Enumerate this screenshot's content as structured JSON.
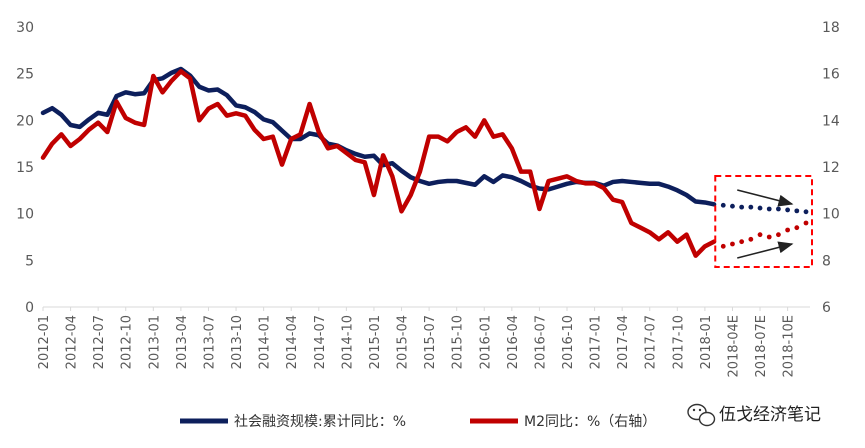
{
  "chart_data": {
    "type": "line",
    "title": "",
    "xlabel": "",
    "ylabel": "",
    "y_left_ticks": [
      "0",
      "5",
      "10",
      "15",
      "20",
      "25",
      "30"
    ],
    "y_right_ticks": [
      "6",
      "8",
      "10",
      "12",
      "14",
      "16",
      "18"
    ],
    "ylim_left": [
      0,
      30
    ],
    "ylim_right": [
      6,
      18
    ],
    "x_tick_labels": [
      "2012-01",
      "2012-04",
      "2012-07",
      "2012-10",
      "2013-01",
      "2013-04",
      "2013-07",
      "2013-10",
      "2014-01",
      "2014-04",
      "2014-07",
      "2014-10",
      "2015-01",
      "2015-04",
      "2015-07",
      "2015-10",
      "2016-01",
      "2016-04",
      "2016-07",
      "2016-10",
      "2017-01",
      "2017-04",
      "2017-07",
      "2017-10",
      "2018-01",
      "2018-04E",
      "2018-07E",
      "2018-10E"
    ],
    "x": [
      "2012-01",
      "2012-02",
      "2012-03",
      "2012-04",
      "2012-05",
      "2012-06",
      "2012-07",
      "2012-08",
      "2012-09",
      "2012-10",
      "2012-11",
      "2012-12",
      "2013-01",
      "2013-02",
      "2013-03",
      "2013-04",
      "2013-05",
      "2013-06",
      "2013-07",
      "2013-08",
      "2013-09",
      "2013-10",
      "2013-11",
      "2013-12",
      "2014-01",
      "2014-02",
      "2014-03",
      "2014-04",
      "2014-05",
      "2014-06",
      "2014-07",
      "2014-08",
      "2014-09",
      "2014-10",
      "2014-11",
      "2014-12",
      "2015-01",
      "2015-02",
      "2015-03",
      "2015-04",
      "2015-05",
      "2015-06",
      "2015-07",
      "2015-08",
      "2015-09",
      "2015-10",
      "2015-11",
      "2015-12",
      "2016-01",
      "2016-02",
      "2016-03",
      "2016-04",
      "2016-05",
      "2016-06",
      "2016-07",
      "2016-08",
      "2016-09",
      "2016-10",
      "2016-11",
      "2016-12",
      "2017-01",
      "2017-02",
      "2017-03",
      "2017-04",
      "2017-05",
      "2017-06",
      "2017-07",
      "2017-08",
      "2017-09",
      "2017-10",
      "2017-11",
      "2017-12",
      "2018-01",
      "2018-02",
      "2018-03",
      "2018-04E",
      "2018-05E",
      "2018-06E",
      "2018-07E",
      "2018-08E",
      "2018-09E",
      "2018-10E",
      "2018-11E",
      "2018-12E"
    ],
    "actual_count": 74,
    "series": [
      {
        "name": "社会融资规模:累计同比：%",
        "axis": "left",
        "color": "#0d1f5c",
        "values": [
          20.8,
          21.3,
          20.6,
          19.5,
          19.3,
          20.1,
          20.8,
          20.6,
          22.6,
          23.0,
          22.8,
          22.9,
          24.3,
          24.5,
          25.1,
          25.5,
          24.8,
          23.6,
          23.2,
          23.3,
          22.7,
          21.6,
          21.4,
          20.9,
          20.1,
          19.8,
          18.9,
          18.0,
          18.0,
          18.6,
          18.4,
          17.5,
          17.3,
          16.8,
          16.4,
          16.1,
          16.2,
          15.2,
          15.4,
          14.6,
          13.9,
          13.5,
          13.2,
          13.4,
          13.5,
          13.5,
          13.3,
          13.1,
          14.0,
          13.4,
          14.1,
          13.9,
          13.5,
          13.0,
          12.7,
          12.6,
          12.9,
          13.2,
          13.4,
          13.3,
          13.3,
          13.0,
          13.4,
          13.5,
          13.4,
          13.3,
          13.2,
          13.2,
          12.9,
          12.5,
          12.0,
          11.3,
          11.2,
          11.0,
          10.9,
          10.8,
          10.7,
          10.7,
          10.6,
          10.5,
          10.5,
          10.4,
          10.3,
          10.2
        ]
      },
      {
        "name": "M2同比：%（右轴）",
        "axis": "right",
        "color": "#c00000",
        "values": [
          12.4,
          13.0,
          13.4,
          12.9,
          13.2,
          13.6,
          13.9,
          13.5,
          14.8,
          14.1,
          13.9,
          13.8,
          15.9,
          15.2,
          15.7,
          16.1,
          15.8,
          14.0,
          14.5,
          14.7,
          14.2,
          14.3,
          14.2,
          13.6,
          13.2,
          13.3,
          12.1,
          13.2,
          13.4,
          14.7,
          13.5,
          12.8,
          12.9,
          12.6,
          12.3,
          12.2,
          10.8,
          12.5,
          11.6,
          10.1,
          10.8,
          11.8,
          13.3,
          13.3,
          13.1,
          13.5,
          13.7,
          13.3,
          14.0,
          13.3,
          13.4,
          12.8,
          11.8,
          11.8,
          10.2,
          11.4,
          11.5,
          11.6,
          11.4,
          11.3,
          11.3,
          11.1,
          10.6,
          10.5,
          9.6,
          9.4,
          9.2,
          8.9,
          9.2,
          8.8,
          9.1,
          8.2,
          8.6,
          8.8,
          8.6,
          8.7,
          8.8,
          8.9,
          9.1,
          9.0,
          9.1,
          9.3,
          9.4,
          9.6
        ]
      }
    ],
    "legend_position": "bottom",
    "grid": false,
    "annotations": [
      "dashed box around 2018 estimates",
      "arrow down (social financing)",
      "arrow up (M2)"
    ]
  },
  "watermark": {
    "text": "伍戈经济笔记",
    "icon": "wechat-icon"
  }
}
